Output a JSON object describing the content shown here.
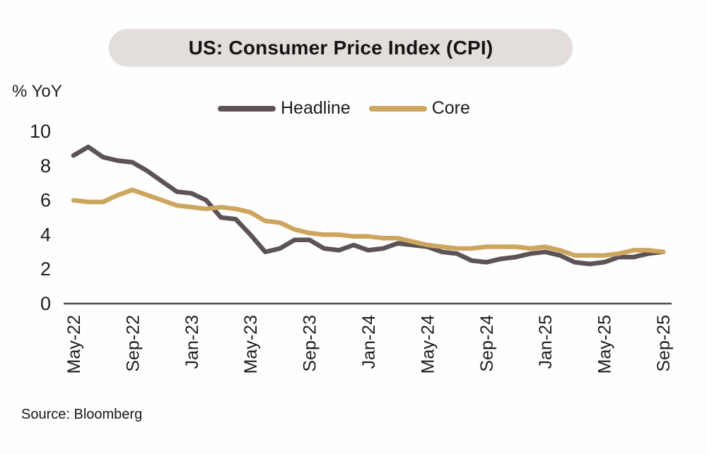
{
  "header": {
    "title": "US: Consumer Price Index (CPI)"
  },
  "chart": {
    "y_axis_unit": "% YoY",
    "legend": [
      {
        "label": "Headline",
        "color": "#5d5356"
      },
      {
        "label": "Core",
        "color": "#cda55f"
      }
    ]
  },
  "footer": {
    "source": "Source: Bloomberg"
  },
  "chart_data": {
    "type": "line",
    "title": "US: Consumer Price Index (CPI)",
    "ylabel": "% YoY",
    "ylim": [
      0,
      10
    ],
    "y_ticks": [
      0,
      2,
      4,
      6,
      8,
      10
    ],
    "grid": false,
    "legend_position": "top",
    "x": [
      "May-22",
      "Jun-22",
      "Jul-22",
      "Aug-22",
      "Sep-22",
      "Oct-22",
      "Nov-22",
      "Dec-22",
      "Jan-23",
      "Feb-23",
      "Mar-23",
      "Apr-23",
      "May-23",
      "Jun-23",
      "Jul-23",
      "Aug-23",
      "Sep-23",
      "Oct-23",
      "Nov-23",
      "Dec-23",
      "Jan-24",
      "Feb-24",
      "Mar-24",
      "Apr-24",
      "May-24",
      "Jun-24",
      "Jul-24",
      "Aug-24",
      "Sep-24",
      "Oct-24",
      "Nov-24",
      "Dec-24",
      "Jan-25",
      "Feb-25",
      "Mar-25",
      "Apr-25",
      "May-25",
      "Jun-25",
      "Jul-25",
      "Aug-25",
      "Sep-25"
    ],
    "x_tick_labels": [
      "May-22",
      "Sep-22",
      "Jan-23",
      "May-23",
      "Sep-23",
      "Jan-24",
      "May-24",
      "Sep-24",
      "Jan-25",
      "May-25",
      "Sep-25"
    ],
    "x_tick_every": 4,
    "series": [
      {
        "name": "Headline",
        "color": "#5d5356",
        "values": [
          8.6,
          9.1,
          8.5,
          8.3,
          8.2,
          7.7,
          7.1,
          6.5,
          6.4,
          6.0,
          5.0,
          4.9,
          4.0,
          3.0,
          3.2,
          3.7,
          3.7,
          3.2,
          3.1,
          3.4,
          3.1,
          3.2,
          3.5,
          3.4,
          3.3,
          3.0,
          2.9,
          2.5,
          2.4,
          2.6,
          2.7,
          2.9,
          3.0,
          2.8,
          2.4,
          2.3,
          2.4,
          2.7,
          2.7,
          2.9,
          3.0
        ]
      },
      {
        "name": "Core",
        "color": "#cda55f",
        "values": [
          6.0,
          5.9,
          5.9,
          6.3,
          6.6,
          6.3,
          6.0,
          5.7,
          5.6,
          5.5,
          5.6,
          5.5,
          5.3,
          4.8,
          4.7,
          4.3,
          4.1,
          4.0,
          4.0,
          3.9,
          3.9,
          3.8,
          3.8,
          3.6,
          3.4,
          3.3,
          3.2,
          3.2,
          3.3,
          3.3,
          3.3,
          3.2,
          3.3,
          3.1,
          2.8,
          2.8,
          2.8,
          2.9,
          3.1,
          3.1,
          3.0
        ]
      }
    ],
    "source": "Source: Bloomberg"
  }
}
